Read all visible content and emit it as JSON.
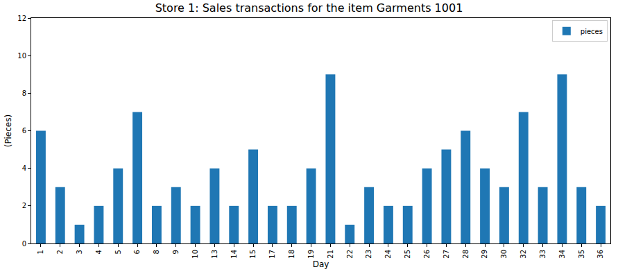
{
  "chart_data": {
    "type": "bar",
    "title": "Store 1: Sales transactions for the item Garments 1001",
    "x_label": "Day",
    "y_label": "(Pieces)",
    "categories": [
      "1",
      "2",
      "3",
      "4",
      "5",
      "6",
      "8",
      "9",
      "10",
      "13",
      "14",
      "15",
      "17",
      "18",
      "19",
      "21",
      "22",
      "23",
      "24",
      "25",
      "26",
      "27",
      "28",
      "29",
      "30",
      "32",
      "33",
      "34",
      "35",
      "36"
    ],
    "series": [
      {
        "name": "pieces",
        "color": "#1f77b4",
        "values": [
          6,
          3,
          1,
          2,
          4,
          7,
          2,
          3,
          2,
          4,
          2,
          5,
          2,
          2,
          4,
          9,
          1,
          3,
          2,
          2,
          4,
          5,
          6,
          4,
          3,
          7,
          3,
          9,
          3,
          2
        ]
      }
    ],
    "ylim": [
      0,
      12
    ],
    "yticks": [
      0,
      2,
      4,
      6,
      8,
      10,
      12
    ],
    "grid": false,
    "legend": "upper right"
  }
}
